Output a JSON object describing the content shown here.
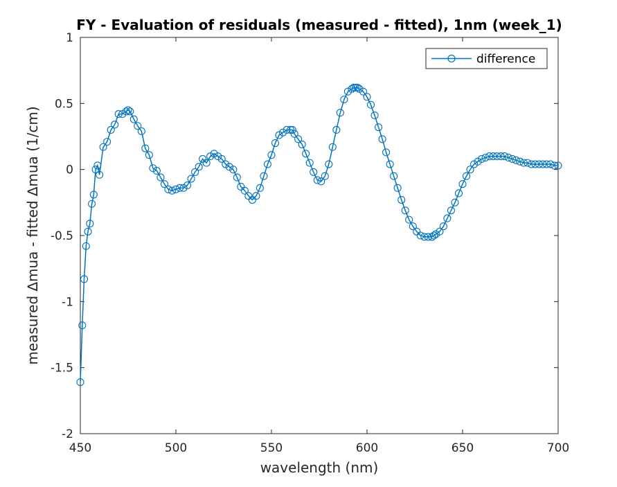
{
  "chart_data": {
    "type": "line",
    "title": "FY - Evaluation of residuals (measured - fitted), 1nm (week_1)",
    "xlabel": "wavelength (nm)",
    "ylabel": "measured ∆mua - fitted ∆mua (1/cm)",
    "xlim": [
      450,
      700
    ],
    "ylim": [
      -2,
      1
    ],
    "xticks": [
      450,
      500,
      550,
      600,
      650,
      700
    ],
    "xtick_labels": [
      "450",
      "500",
      "550",
      "600",
      "650",
      "700"
    ],
    "yticks": [
      -2,
      -1.5,
      -1,
      -0.5,
      0,
      0.5,
      1
    ],
    "ytick_labels": [
      "-2",
      "-1.5",
      "-1",
      "-0.5",
      "0",
      "0.5",
      "1"
    ],
    "grid": false,
    "legend_position": "top-right",
    "marker": "circle",
    "series_color": "#0072bd",
    "series": [
      {
        "name": "difference",
        "x": [
          450,
          451,
          452,
          453,
          454,
          455,
          456,
          457,
          458,
          459,
          460,
          462,
          464,
          466,
          468,
          470,
          472,
          474,
          475,
          476,
          478,
          480,
          482,
          484,
          486,
          488,
          490,
          492,
          494,
          496,
          498,
          500,
          502,
          504,
          506,
          508,
          510,
          512,
          514,
          516,
          518,
          520,
          522,
          524,
          526,
          528,
          530,
          532,
          534,
          536,
          538,
          540,
          542,
          544,
          546,
          548,
          550,
          552,
          554,
          556,
          558,
          560,
          561,
          562,
          564,
          566,
          568,
          570,
          572,
          574,
          576,
          578,
          580,
          582,
          584,
          586,
          588,
          590,
          592,
          593,
          594,
          595,
          596,
          598,
          600,
          602,
          604,
          606,
          608,
          610,
          612,
          614,
          616,
          618,
          620,
          622,
          624,
          626,
          628,
          630,
          632,
          634,
          635,
          636,
          638,
          640,
          642,
          644,
          646,
          648,
          650,
          652,
          654,
          656,
          658,
          660,
          662,
          664,
          666,
          668,
          670,
          672,
          674,
          676,
          678,
          680,
          682,
          684,
          686,
          688,
          690,
          692,
          694,
          696,
          698,
          700
        ],
        "y": [
          -1.61,
          -1.18,
          -0.83,
          -0.58,
          -0.47,
          -0.41,
          -0.26,
          -0.19,
          0.0,
          0.03,
          -0.04,
          0.17,
          0.21,
          0.3,
          0.34,
          0.42,
          0.42,
          0.44,
          0.45,
          0.44,
          0.38,
          0.33,
          0.29,
          0.16,
          0.11,
          0.01,
          -0.01,
          -0.06,
          -0.11,
          -0.15,
          -0.16,
          -0.15,
          -0.14,
          -0.14,
          -0.12,
          -0.07,
          -0.02,
          0.02,
          0.08,
          0.05,
          0.1,
          0.12,
          0.1,
          0.08,
          0.04,
          0.02,
          0.0,
          -0.06,
          -0.13,
          -0.16,
          -0.2,
          -0.23,
          -0.2,
          -0.14,
          -0.05,
          0.04,
          0.11,
          0.2,
          0.26,
          0.28,
          0.3,
          0.3,
          0.3,
          0.27,
          0.23,
          0.19,
          0.12,
          0.05,
          -0.02,
          -0.08,
          -0.09,
          -0.05,
          0.04,
          0.17,
          0.3,
          0.43,
          0.53,
          0.59,
          0.61,
          0.62,
          0.62,
          0.62,
          0.61,
          0.59,
          0.55,
          0.49,
          0.41,
          0.32,
          0.23,
          0.13,
          0.04,
          -0.05,
          -0.14,
          -0.23,
          -0.31,
          -0.38,
          -0.43,
          -0.47,
          -0.5,
          -0.51,
          -0.51,
          -0.51,
          -0.5,
          -0.49,
          -0.47,
          -0.43,
          -0.37,
          -0.31,
          -0.25,
          -0.18,
          -0.11,
          -0.05,
          0.0,
          0.04,
          0.06,
          0.08,
          0.09,
          0.1,
          0.1,
          0.1,
          0.1,
          0.1,
          0.09,
          0.08,
          0.07,
          0.06,
          0.05,
          0.05,
          0.04,
          0.04,
          0.04,
          0.04,
          0.04,
          0.04,
          0.03,
          0.03
        ]
      }
    ]
  }
}
